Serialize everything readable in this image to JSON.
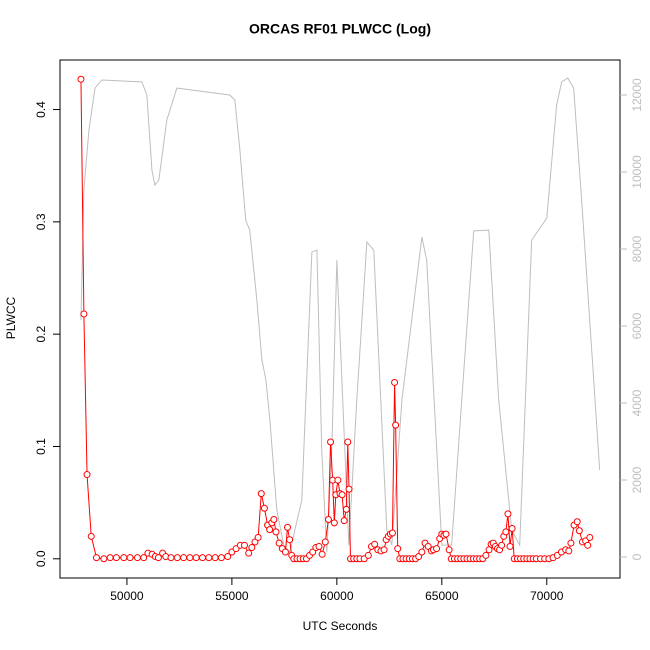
{
  "chart_data": {
    "type": "line",
    "title": "ORCAS RF01 PLWCC (Log)",
    "x_label": "UTC Seconds",
    "y_label": "PLWCC",
    "xlim": [
      46812,
      73488
    ],
    "ylim": [
      -0.0171,
      0.4441
    ],
    "y2lim": [
      -545,
      12909
    ],
    "xticks": [
      50000,
      55000,
      60000,
      65000,
      70000
    ],
    "yticks": [
      {
        "value": 0,
        "label": "0.0"
      },
      0.1,
      0.2,
      0.3,
      0.4
    ],
    "y2ticks": [
      0,
      2000,
      4000,
      6000,
      8000,
      10000,
      12000
    ],
    "y2_tick_color": "#bebebe",
    "series": [
      {
        "color": "#ff0000",
        "markers": true,
        "x": [
          47810,
          47950,
          48100,
          48300,
          48550,
          48900,
          49200,
          49500,
          49850,
          50150,
          50500,
          50800,
          51000,
          51200,
          51350,
          51500,
          51700,
          51850,
          52100,
          52400,
          52700,
          53000,
          53300,
          53600,
          53900,
          54200,
          54500,
          54800,
          55000,
          55200,
          55400,
          55600,
          55800,
          55950,
          56100,
          56250,
          56400,
          56550,
          56700,
          56800,
          56900,
          57000,
          57100,
          57250,
          57400,
          57550,
          57650,
          57750,
          57850,
          57950,
          58100,
          58250,
          58400,
          58550,
          58700,
          58850,
          59000,
          59150,
          59300,
          59450,
          59600,
          59700,
          59800,
          59880,
          59950,
          60050,
          60150,
          60250,
          60350,
          60450,
          60520,
          60580,
          60650,
          60800,
          60950,
          61100,
          61300,
          61500,
          61650,
          61800,
          61950,
          62100,
          62250,
          62350,
          62450,
          62550,
          62650,
          62750,
          62800,
          62900,
          63000,
          63150,
          63300,
          63450,
          63600,
          63750,
          63900,
          64050,
          64200,
          64350,
          64500,
          64600,
          64750,
          64900,
          65000,
          65100,
          65200,
          65350,
          65450,
          65600,
          65750,
          65900,
          66050,
          66200,
          66350,
          66500,
          66650,
          66800,
          66950,
          67100,
          67250,
          67350,
          67450,
          67550,
          67650,
          67750,
          67850,
          67950,
          68050,
          68150,
          68250,
          68350,
          68450,
          68600,
          68750,
          68900,
          69050,
          69200,
          69350,
          69500,
          69700,
          69900,
          70100,
          70300,
          70500,
          70700,
          70900,
          71050,
          71150,
          71300,
          71450,
          71550,
          71700,
          71850,
          71950,
          72050
        ],
        "values": [
          0.427,
          0.218,
          0.075,
          0.02,
          0.001,
          0,
          0.001,
          0.001,
          0.001,
          0.001,
          0.001,
          0.001,
          0.005,
          0.004,
          0.002,
          0.001,
          0.005,
          0.002,
          0.001,
          0.001,
          0.001,
          0.001,
          0.001,
          0.001,
          0.001,
          0.001,
          0.001,
          0.002,
          0.006,
          0.009,
          0.012,
          0.012,
          0.005,
          0.01,
          0.015,
          0.019,
          0.058,
          0.045,
          0.03,
          0.026,
          0.032,
          0.035,
          0.024,
          0.014,
          0.009,
          0.006,
          0.028,
          0.017,
          0.003,
          0,
          0,
          0,
          0,
          0,
          0.003,
          0.006,
          0.01,
          0.011,
          0.004,
          0.015,
          0.035,
          0.104,
          0.07,
          0.032,
          0.057,
          0.07,
          0.058,
          0.057,
          0.034,
          0.044,
          0.104,
          0.062,
          0,
          0,
          0,
          0,
          0,
          0.003,
          0.011,
          0.013,
          0.008,
          0.007,
          0.008,
          0.017,
          0.02,
          0.022,
          0.023,
          0.157,
          0.119,
          0.009,
          0,
          0,
          0,
          0,
          0,
          0,
          0.002,
          0.006,
          0.014,
          0.011,
          0.007,
          0.008,
          0.009,
          0.018,
          0.022,
          0.021,
          0.022,
          0.008,
          0,
          0,
          0,
          0,
          0,
          0,
          0,
          0,
          0,
          0,
          0,
          0.003,
          0.008,
          0.013,
          0.014,
          0.011,
          0.009,
          0.008,
          0.012,
          0.02,
          0.024,
          0.04,
          0.011,
          0.027,
          0,
          0,
          0,
          0,
          0,
          0,
          0,
          0,
          0,
          0,
          0,
          0.001,
          0.003,
          0.006,
          0.008,
          0.007,
          0.014,
          0.03,
          0.033,
          0.025,
          0.015,
          0.016,
          0.012,
          0.019
        ]
      },
      {
        "color": "#bebebe",
        "axis": "y2",
        "markers": false,
        "x": [
          47810,
          47950,
          48190,
          48480,
          48810,
          50710,
          50950,
          51190,
          51330,
          51520,
          51900,
          52380,
          54900,
          55140,
          55380,
          55660,
          55850,
          56190,
          56430,
          56620,
          56810,
          57140,
          57470,
          57760,
          58330,
          58810,
          59050,
          59280,
          59520,
          59760,
          60000,
          60570,
          60950,
          61430,
          61760,
          62380,
          62620,
          63100,
          64050,
          64280,
          65000,
          65470,
          65950,
          66520,
          67240,
          67710,
          68330,
          68710,
          69280,
          70000,
          70470,
          70710,
          71000,
          71280,
          71660,
          72140,
          72520
        ],
        "values": [
          6155,
          9530,
          11090,
          12180,
          12390,
          12340,
          12000,
          10050,
          9660,
          9790,
          11350,
          12180,
          12000,
          11870,
          10570,
          8750,
          8490,
          6670,
          5120,
          4600,
          3560,
          1220,
          310,
          130,
          1480,
          7920,
          7970,
          2780,
          130,
          2780,
          7710,
          310,
          4080,
          8180,
          7970,
          700,
          310,
          4080,
          8310,
          7710,
          310,
          310,
          4080,
          8470,
          8490,
          4080,
          700,
          310,
          8230,
          8800,
          11740,
          12340,
          12440,
          12180,
          9270,
          5380,
          2260
        ]
      }
    ]
  }
}
